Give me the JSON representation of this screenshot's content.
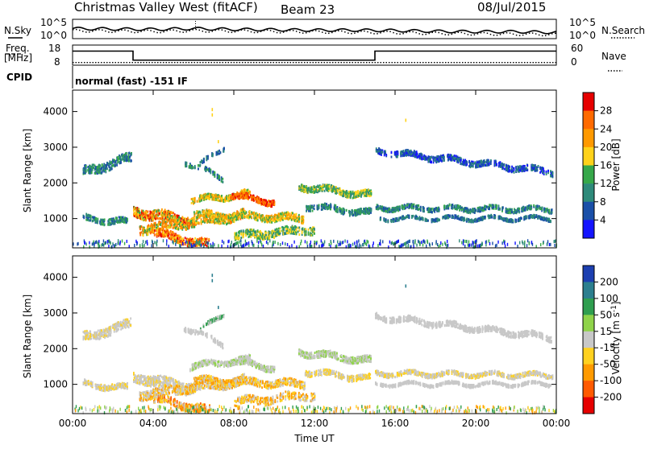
{
  "header": {
    "site": "Christmas Valley West (fitACF)",
    "beam": "Beam 23",
    "date": "08/Jul/2015"
  },
  "noise_panel": {
    "left_label": "N.Sky",
    "right_label": "N.Search",
    "left_ticks": [
      "10^5",
      "10^0"
    ],
    "right_ticks": [
      "10^5",
      "10^0"
    ]
  },
  "freq_panel": {
    "left_label": "Freq.",
    "left_unit": "[MHz]",
    "right_label": "Nave",
    "left_ticks": [
      "18",
      "8"
    ],
    "right_ticks": [
      "60",
      "0"
    ]
  },
  "cpid": {
    "label": "CPID",
    "text": "normal (fast) -151 IF"
  },
  "power_colorbar": {
    "label": "Power [dB]",
    "ticks": [
      "28",
      "24",
      "20",
      "16",
      "12",
      "8",
      "4"
    ],
    "colors": [
      "#e60000",
      "#ff6a00",
      "#ff9900",
      "#ffd21a",
      "#36a84a",
      "#2e8a7a",
      "#1a4fa8",
      "#1414ff"
    ]
  },
  "velocity_colorbar": {
    "label": "Velocity [m s",
    "label_sup": "-1",
    "label_end": "]",
    "ticks": [
      "200",
      "100",
      "50",
      "15",
      "-15",
      "-50",
      "-100",
      "-200"
    ],
    "colors": [
      "#1c3fb0",
      "#2c7f8f",
      "#2f9e4f",
      "#8fd34a",
      "#c8c8c8",
      "#ffd11f",
      "#ff9a00",
      "#ff5a00",
      "#e60000"
    ]
  },
  "chart_data": [
    {
      "type": "line",
      "panel": "noise",
      "ylabel_left": "N.Sky",
      "ylabel_right": "N.Search",
      "ylim": [
        0,
        5
      ],
      "x": [
        "00:00",
        "02:00",
        "04:00",
        "06:00",
        "08:00",
        "10:00",
        "12:00",
        "14:00",
        "16:00",
        "18:00",
        "20:00",
        "22:00",
        "24:00"
      ],
      "series": [
        {
          "name": "N.Sky",
          "values": [
            2.6,
            2.5,
            2.4,
            2.6,
            2.4,
            2.3,
            2.2,
            2.2,
            2.1,
            1.9,
            1.8,
            1.8,
            1.6
          ]
        },
        {
          "name": "N.Search",
          "values": [
            2.2,
            2.1,
            2.0,
            2.2,
            2.1,
            2.0,
            1.9,
            1.8,
            1.7,
            1.5,
            1.4,
            1.3,
            1.2
          ]
        }
      ]
    },
    {
      "type": "line",
      "panel": "frequency",
      "ylabel_left": "Freq. [MHz]",
      "ylabel_right": "Nave",
      "ylim_left": [
        8,
        18
      ],
      "ylim_right": [
        0,
        60
      ],
      "series": [
        {
          "name": "Freq.",
          "points": [
            [
              0,
              15
            ],
            [
              3,
              15
            ],
            [
              3,
              10.5
            ],
            [
              15,
              10.5
            ],
            [
              15,
              15
            ],
            [
              24,
              15
            ]
          ]
        },
        {
          "name": "Nave",
          "points": [
            [
              0,
              8
            ],
            [
              24,
              8
            ]
          ]
        }
      ]
    },
    {
      "type": "heatmap",
      "panel": "power",
      "xlabel": "",
      "ylabel": "Slant Range [km]",
      "xlim": [
        0,
        24
      ],
      "ylim": [
        180,
        4600
      ],
      "xticks": [
        "00:00",
        "04:00",
        "08:00",
        "12:00",
        "16:00",
        "20:00",
        "00:00"
      ],
      "yticks": [
        1000,
        2000,
        3000,
        4000
      ],
      "colorbar": "Power [dB]"
    },
    {
      "type": "heatmap",
      "panel": "velocity",
      "xlabel": "Time UT",
      "ylabel": "Slant Range [km]",
      "xlim": [
        0,
        24
      ],
      "ylim": [
        180,
        4600
      ],
      "xticks": [
        "00:00",
        "04:00",
        "08:00",
        "12:00",
        "16:00",
        "20:00",
        "00:00"
      ],
      "yticks": [
        1000,
        2000,
        3000,
        4000
      ],
      "colorbar": "Velocity [m s-1]"
    }
  ]
}
